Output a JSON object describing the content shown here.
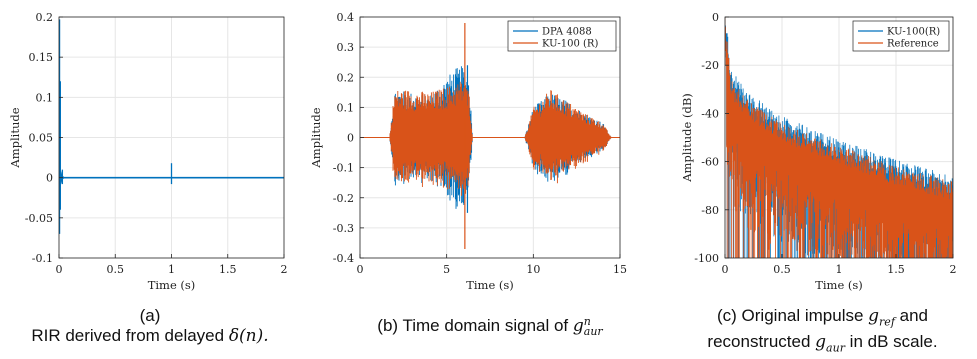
{
  "colors": {
    "blue": "#0072BD",
    "orange": "#D95319",
    "axis": "#262626",
    "grid": "#e6e6e6"
  },
  "captions": {
    "a_line1": "(a)",
    "a_line2_pre": "RIR derived from delayed ",
    "a_math": "δ(n).",
    "b_pre": "(b) Time domain signal of ",
    "b_math_base": "g",
    "b_math_sup": "n",
    "b_math_sub": "aur",
    "c_line1_pre": "(c) Original impulse ",
    "c_g1_base": "g",
    "c_g1_sub": "ref",
    "c_line1_post": " and",
    "c_line2_pre": "reconstructed ",
    "c_g2_base": "g",
    "c_g2_sub": "aur",
    "c_line2_post": " in dB scale."
  },
  "chart_data": [
    {
      "id": "a",
      "type": "line",
      "xlabel": "Time (s)",
      "ylabel": "Amplitude",
      "xlim": [
        0,
        2
      ],
      "ylim": [
        -0.1,
        0.2
      ],
      "xticks": [
        0,
        0.5,
        1,
        1.5,
        2
      ],
      "xtick_labels": [
        "0",
        "0.5",
        "1",
        "1.5",
        "2"
      ],
      "yticks": [
        -0.1,
        -0.05,
        0,
        0.05,
        0.1,
        0.15,
        0.2
      ],
      "ytick_labels": [
        "-0.1",
        "-0.05",
        "0",
        "0.05",
        "0.1",
        "0.15",
        "0.2"
      ],
      "grid": true,
      "series": [
        {
          "color": "blue",
          "impulses": [
            {
              "x": 0.005,
              "y_max": 0.197,
              "y_min": -0.07
            },
            {
              "x": 0.012,
              "y_max": 0.12,
              "y_min": -0.04
            },
            {
              "x": 0.03,
              "y_max": 0.01,
              "y_min": -0.008
            },
            {
              "x": 1.0,
              "y_max": 0.018,
              "y_min": -0.008
            }
          ]
        }
      ]
    },
    {
      "id": "b",
      "type": "line",
      "xlabel": "Time (s)",
      "ylabel": "Amplitude",
      "xlim": [
        0,
        15
      ],
      "ylim": [
        -0.4,
        0.4
      ],
      "xticks": [
        0,
        5,
        10,
        15
      ],
      "xtick_labels": [
        "0",
        "5",
        "10",
        "15"
      ],
      "yticks": [
        -0.4,
        -0.3,
        -0.2,
        -0.1,
        0,
        0.1,
        0.2,
        0.3,
        0.4
      ],
      "ytick_labels": [
        "-0.4",
        "-0.3",
        "-0.2",
        "-0.1",
        "0",
        "0.1",
        "0.2",
        "0.3",
        "0.4"
      ],
      "grid": true,
      "legend": "top-right",
      "series": [
        {
          "name": "DPA 4088",
          "color": "blue",
          "envelope": [
            [
              1.7,
              0
            ],
            [
              2.0,
              0.16
            ],
            [
              3,
              0.15
            ],
            [
              4,
              0.14
            ],
            [
              5,
              0.2
            ],
            [
              5.5,
              0.23
            ],
            [
              6,
              0.24
            ],
            [
              6.3,
              0.2
            ],
            [
              6.5,
              0
            ],
            [
              9.5,
              0
            ],
            [
              10,
              0.1
            ],
            [
              11,
              0.15
            ],
            [
              12,
              0.12
            ],
            [
              13,
              0.08
            ],
            [
              14,
              0.05
            ],
            [
              14.5,
              0
            ]
          ],
          "peaks": [
            {
              "x": 6.2,
              "y_max": 0.24,
              "y_min": -0.25
            }
          ]
        },
        {
          "name": "KU-100 (R)",
          "color": "orange",
          "envelope": [
            [
              1.7,
              0
            ],
            [
              2.0,
              0.16
            ],
            [
              3,
              0.16
            ],
            [
              4,
              0.15
            ],
            [
              5,
              0.17
            ],
            [
              5.5,
              0.18
            ],
            [
              6,
              0.2
            ],
            [
              6.3,
              0.15
            ],
            [
              6.5,
              0
            ],
            [
              9.5,
              0
            ],
            [
              10,
              0.1
            ],
            [
              11,
              0.16
            ],
            [
              12,
              0.12
            ],
            [
              13,
              0.08
            ],
            [
              14,
              0.05
            ],
            [
              14.5,
              0
            ]
          ],
          "peaks": [
            {
              "x": 6.05,
              "y_max": 0.38,
              "y_min": -0.37
            }
          ]
        }
      ]
    },
    {
      "id": "c",
      "type": "line",
      "xlabel": "Time (s)",
      "ylabel": "Amplitude (dB)",
      "xlim": [
        0,
        2
      ],
      "ylim": [
        -100,
        0
      ],
      "xticks": [
        0,
        0.5,
        1,
        1.5,
        2
      ],
      "xtick_labels": [
        "0",
        "0.5",
        "1",
        "1.5",
        "2"
      ],
      "yticks": [
        -100,
        -80,
        -60,
        -40,
        -20,
        0
      ],
      "ytick_labels": [
        "-100",
        "-80",
        "-60",
        "-40",
        "-20",
        "0"
      ],
      "grid": true,
      "legend": "top-right",
      "series": [
        {
          "name": "KU-100(R)",
          "color": "blue",
          "decay_top": [
            [
              0,
              0
            ],
            [
              0.05,
              -25
            ],
            [
              0.2,
              -35
            ],
            [
              0.5,
              -45
            ],
            [
              1,
              -55
            ],
            [
              1.5,
              -63
            ],
            [
              2,
              -70
            ]
          ]
        },
        {
          "name": "Reference",
          "color": "orange",
          "decay_top": [
            [
              0,
              -2
            ],
            [
              0.05,
              -30
            ],
            [
              0.2,
              -38
            ],
            [
              0.5,
              -48
            ],
            [
              1,
              -57
            ],
            [
              1.5,
              -66
            ],
            [
              2,
              -72
            ]
          ]
        }
      ]
    }
  ]
}
